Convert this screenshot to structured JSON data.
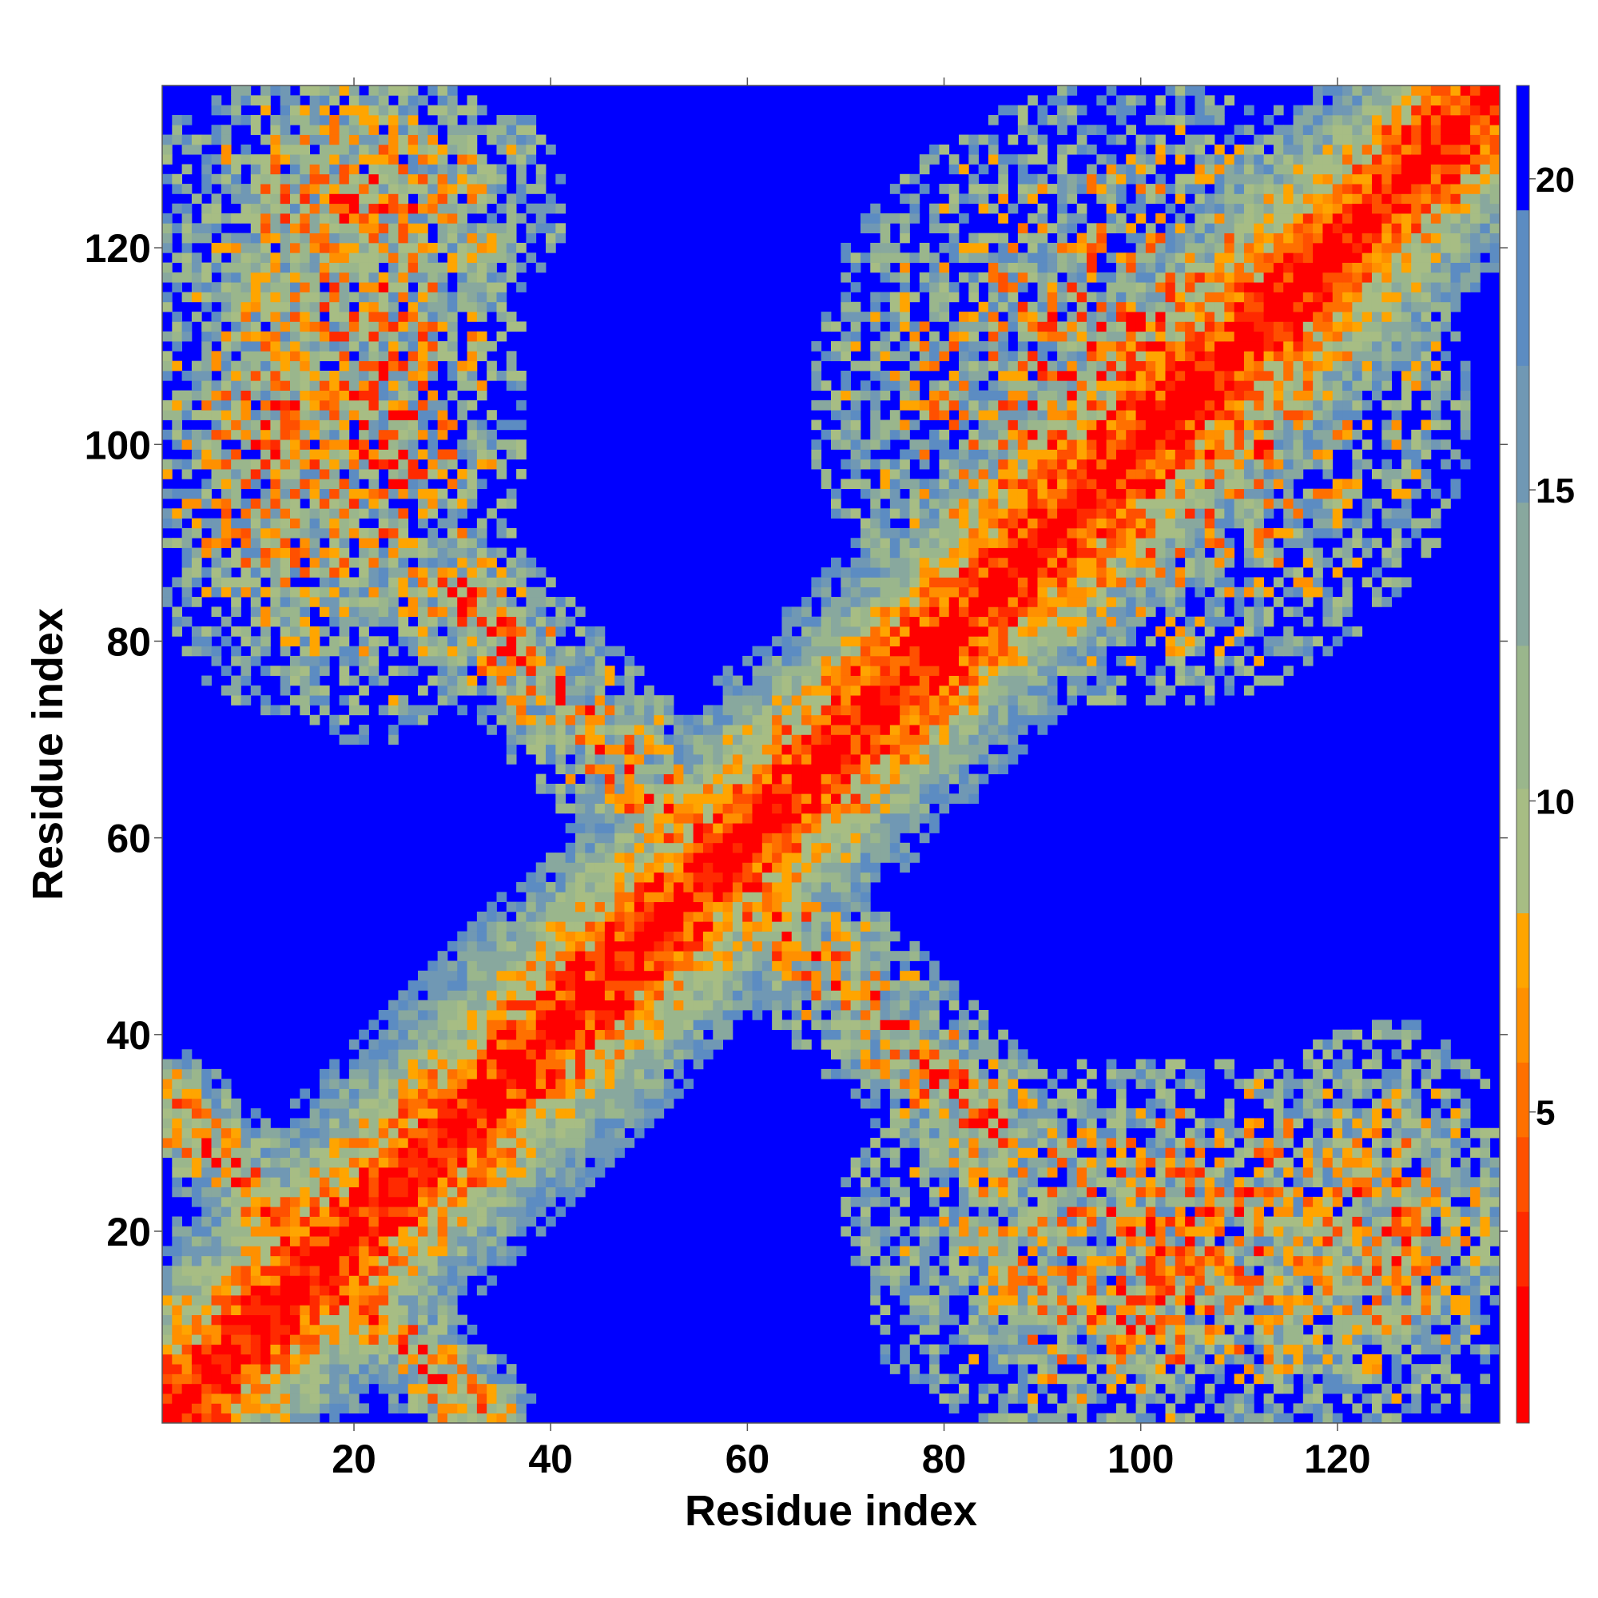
{
  "chart_data": {
    "type": "heatmap",
    "title": "",
    "xlabel": "Residue index",
    "ylabel": "Residue index",
    "x_range": [
      1,
      136
    ],
    "y_range": [
      1,
      136
    ],
    "x_ticks": [
      20,
      40,
      60,
      80,
      100,
      120
    ],
    "y_ticks": [
      20,
      40,
      60,
      80,
      100,
      120
    ],
    "colorbar": {
      "range": [
        0,
        21.5
      ],
      "ticks": [
        5,
        10,
        15,
        20
      ],
      "levels": [
        {
          "upto": 2.2,
          "color": "#ff0000"
        },
        {
          "upto": 3.4,
          "color": "#ff2a00"
        },
        {
          "upto": 4.6,
          "color": "#ff5000"
        },
        {
          "upto": 5.8,
          "color": "#ff7000"
        },
        {
          "upto": 7.0,
          "color": "#ff9000"
        },
        {
          "upto": 8.2,
          "color": "#ffa500"
        },
        {
          "upto": 10.2,
          "color": "#a7bd84"
        },
        {
          "upto": 12.5,
          "color": "#9ab68c"
        },
        {
          "upto": 14.8,
          "color": "#88a89e"
        },
        {
          "upto": 17.0,
          "color": "#7098b4"
        },
        {
          "upto": 19.5,
          "color": "#5c8cc2"
        },
        {
          "upto": 21.5,
          "color": "#0000ff"
        }
      ]
    },
    "description": "Symmetric residue-residue distance map (Angstrom) with contacts along the diagonal and an anti-diagonal band",
    "regions": [
      {
        "kind": "band",
        "a": [
          1,
          1
        ],
        "b": [
          136,
          136
        ],
        "width": 14,
        "min": 0,
        "noise": 0.2
      },
      {
        "kind": "band",
        "a": [
          1,
          33
        ],
        "b": [
          33,
          1
        ],
        "width": 6,
        "min": 5.5,
        "noise": 0.35
      },
      {
        "kind": "band",
        "a": [
          30,
          85
        ],
        "b": [
          85,
          30
        ],
        "width": 8,
        "min": 6.5,
        "noise": 0.4
      },
      {
        "kind": "blob",
        "c": [
          12,
          100
        ],
        "r": [
          14,
          28
        ],
        "min": 8.5,
        "noise": 0.5
      },
      {
        "kind": "blob",
        "c": [
          100,
          12
        ],
        "r": [
          28,
          14
        ],
        "min": 8.5,
        "noise": 0.5
      },
      {
        "kind": "blob",
        "c": [
          100,
          105
        ],
        "r": [
          34,
          32
        ],
        "min": 7.5,
        "noise": 0.55
      },
      {
        "kind": "blob",
        "c": [
          105,
          22
        ],
        "r": [
          36,
          16
        ],
        "min": 9.5,
        "noise": 0.55
      },
      {
        "kind": "blob",
        "c": [
          22,
          105
        ],
        "r": [
          16,
          36
        ],
        "min": 9.5,
        "noise": 0.55
      },
      {
        "kind": "blob",
        "c": [
          20,
          125
        ],
        "r": [
          22,
          14
        ],
        "min": 8.5,
        "noise": 0.5
      },
      {
        "kind": "blob",
        "c": [
          125,
          20
        ],
        "r": [
          14,
          22
        ],
        "min": 8.5,
        "noise": 0.5
      }
    ]
  }
}
